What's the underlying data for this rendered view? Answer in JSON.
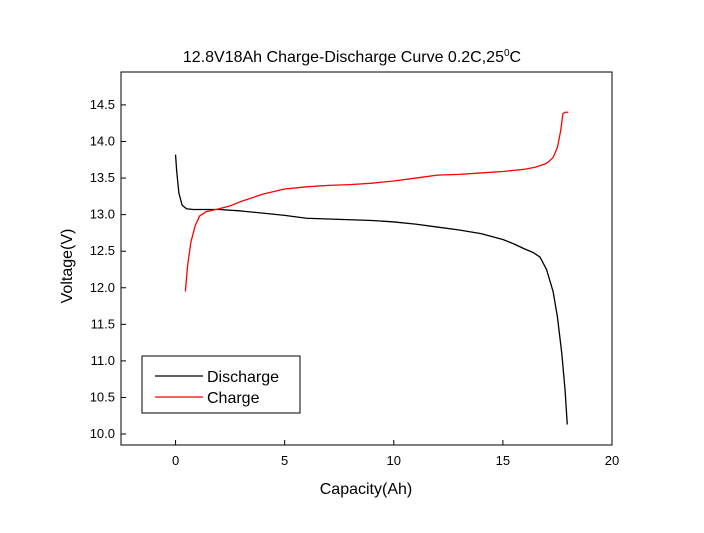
{
  "chart_data": {
    "type": "line",
    "title": "12.8V18Ah Charge-Discharge Curve  0.2C,25",
    "title_superscript": "0",
    "title_suffix": "C",
    "xlabel": "Capacity(Ah)",
    "ylabel": "Voltage(V)",
    "xlim": [
      -2.5,
      20
    ],
    "ylim": [
      9.85,
      14.95
    ],
    "x_ticks": [
      0,
      5,
      10,
      15,
      20
    ],
    "y_ticks": [
      10.0,
      10.5,
      11.0,
      11.5,
      12.0,
      12.5,
      13.0,
      13.5,
      14.0,
      14.5
    ],
    "x_tick_labels": [
      "0",
      "5",
      "10",
      "15",
      "20"
    ],
    "y_tick_labels": [
      "10.0",
      "10.5",
      "11.0",
      "11.5",
      "12.0",
      "12.5",
      "13.0",
      "13.5",
      "14.0",
      "14.5"
    ],
    "grid": false,
    "legend_position": "bottom-left",
    "series": [
      {
        "name": "Discharge",
        "color": "#000000",
        "x": [
          0.0,
          0.05,
          0.15,
          0.3,
          0.5,
          0.8,
          1.2,
          2.0,
          3.0,
          4.0,
          5.0,
          6.0,
          7.0,
          8.0,
          9.0,
          10.0,
          11.0,
          12.0,
          13.0,
          14.0,
          15.0,
          15.5,
          16.0,
          16.4,
          16.7,
          17.0,
          17.3,
          17.5,
          17.7,
          17.85,
          17.95
        ],
        "y": [
          13.82,
          13.6,
          13.3,
          13.13,
          13.08,
          13.07,
          13.07,
          13.07,
          13.05,
          13.02,
          12.99,
          12.95,
          12.94,
          12.93,
          12.92,
          12.9,
          12.87,
          12.83,
          12.79,
          12.74,
          12.66,
          12.6,
          12.53,
          12.48,
          12.42,
          12.25,
          11.95,
          11.6,
          11.1,
          10.6,
          10.13
        ]
      },
      {
        "name": "Charge",
        "color": "#ff0000",
        "x": [
          0.45,
          0.55,
          0.7,
          0.9,
          1.1,
          1.4,
          1.7,
          2.0,
          2.5,
          3.0,
          4.0,
          5.0,
          6.0,
          7.0,
          8.0,
          9.0,
          10.0,
          11.0,
          12.0,
          13.0,
          14.0,
          15.0,
          16.0,
          16.5,
          17.0,
          17.3,
          17.5,
          17.65,
          17.75,
          17.85,
          18.0
        ],
        "y": [
          11.95,
          12.3,
          12.62,
          12.85,
          12.98,
          13.04,
          13.06,
          13.08,
          13.12,
          13.18,
          13.28,
          13.35,
          13.38,
          13.4,
          13.41,
          13.43,
          13.46,
          13.5,
          13.54,
          13.55,
          13.57,
          13.59,
          13.62,
          13.65,
          13.7,
          13.78,
          13.92,
          14.15,
          14.38,
          14.4,
          14.4
        ]
      }
    ]
  }
}
